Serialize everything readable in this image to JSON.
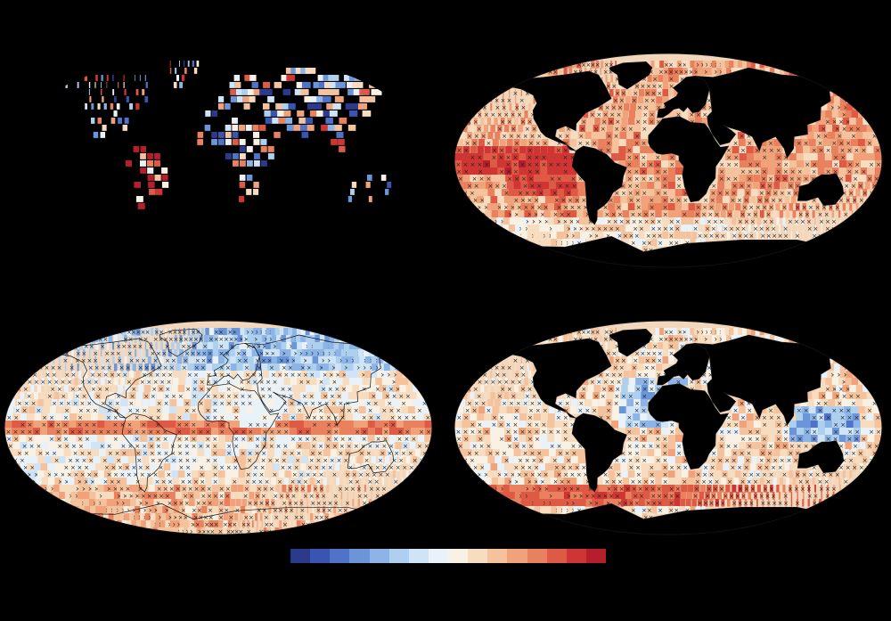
{
  "colors": {
    "background": "#000000",
    "land": "#000000",
    "coast": "#1a1a1a",
    "hatch": "#222222"
  },
  "colorbar": {
    "colors": [
      "#2c3a8c",
      "#3a55b0",
      "#4f73c8",
      "#6b95d9",
      "#8cb4e6",
      "#aed0ef",
      "#cfe4f6",
      "#e9f2f8",
      "#f8f1e4",
      "#f7dcc0",
      "#f4c29c",
      "#f0a37a",
      "#e9805e",
      "#df5a45",
      "#cf3533",
      "#b51f2b"
    ]
  },
  "maps": [
    {
      "id": "map-a",
      "style": "land-stations",
      "icon": "world-map-icon"
    },
    {
      "id": "map-b",
      "style": "ocean-warm",
      "icon": "world-map-icon"
    },
    {
      "id": "map-c",
      "style": "global-mixed",
      "icon": "world-map-icon"
    },
    {
      "id": "map-d",
      "style": "ocean-mixed",
      "icon": "world-map-icon"
    }
  ]
}
